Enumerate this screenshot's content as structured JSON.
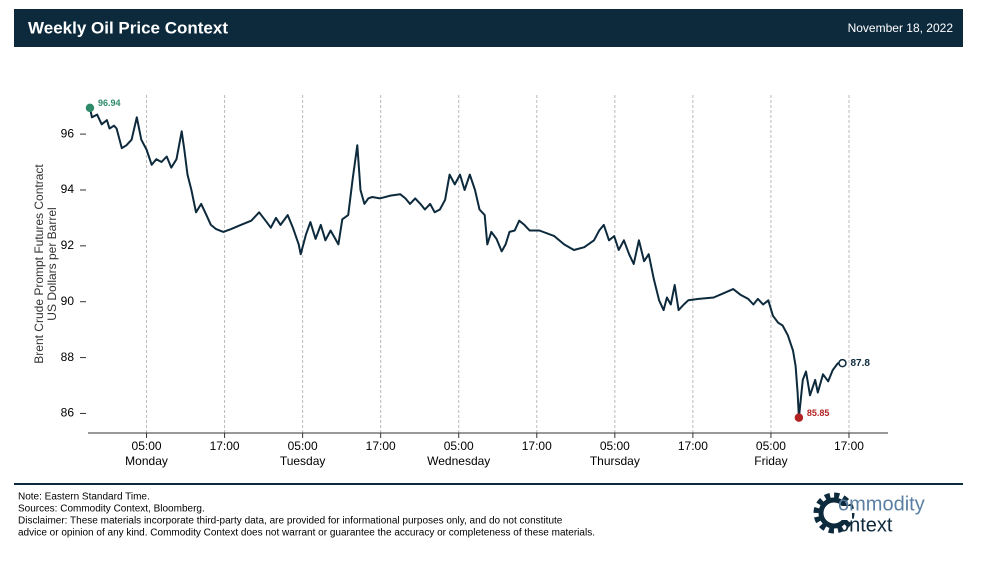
{
  "header": {
    "title": "Weekly Oil Price Context",
    "date": "November 18, 2022"
  },
  "chart_data": {
    "type": "line",
    "ylabel": [
      "Brent Crude Prompt Futures Contract",
      "US Dollars per Barrel"
    ],
    "xlim": [
      -4,
      119
    ],
    "ylim": [
      85.3,
      97.4
    ],
    "yticks": [
      86,
      88,
      90,
      92,
      94,
      96
    ],
    "xticks": [
      {
        "value": 5,
        "label": "05:00"
      },
      {
        "value": 17,
        "label": "17:00"
      },
      {
        "value": 29,
        "label": "05:00"
      },
      {
        "value": 41,
        "label": "17:00"
      },
      {
        "value": 53,
        "label": "05:00"
      },
      {
        "value": 65,
        "label": "17:00"
      },
      {
        "value": 77,
        "label": "05:00"
      },
      {
        "value": 89,
        "label": "17:00"
      },
      {
        "value": 101,
        "label": "05:00"
      },
      {
        "value": 113,
        "label": "17:00"
      }
    ],
    "day_labels": [
      {
        "value": 5,
        "label": "Monday"
      },
      {
        "value": 29,
        "label": "Tuesday"
      },
      {
        "value": 53,
        "label": "Wednesday"
      },
      {
        "value": 77,
        "label": "Thursday"
      },
      {
        "value": 101,
        "label": "Friday"
      }
    ],
    "grid": true,
    "series": [
      {
        "color": "#0d2a3d",
        "x": [
          -3.7,
          -3.4,
          -2.6,
          -1.9,
          -1.1,
          -0.7,
          0.0,
          0.4,
          1.2,
          1.9,
          2.7,
          3.5,
          4.2,
          5.0,
          5.8,
          6.5,
          7.3,
          8.1,
          8.8,
          9.6,
          10.4,
          10.8,
          11.3,
          11.9,
          12.6,
          13.4,
          14.2,
          14.9,
          15.7,
          16.8,
          18.0,
          19.5,
          21.1,
          22.3,
          23.3,
          24.1,
          24.9,
          25.6,
          26.7,
          27.5,
          28.4,
          28.7,
          29.5,
          30.2,
          31.0,
          31.8,
          32.5,
          33.3,
          34.5,
          35.1,
          36.0,
          36.7,
          37.4,
          37.9,
          38.5,
          39.1,
          39.7,
          40.9,
          42.5,
          44.0,
          44.8,
          45.5,
          46.3,
          47.1,
          47.8,
          48.6,
          49.3,
          50.1,
          50.9,
          51.6,
          52.4,
          53.2,
          53.9,
          54.7,
          55.5,
          56.2,
          57.0,
          57.4,
          58.0,
          58.8,
          59.6,
          60.2,
          60.8,
          61.6,
          62.3,
          63.1,
          63.9,
          65.4,
          67.7,
          69.2,
          70.7,
          72.3,
          73.8,
          74.6,
          75.3,
          76.1,
          76.9,
          77.6,
          78.4,
          79.2,
          79.9,
          80.7,
          81.5,
          82.2,
          83.0,
          83.8,
          84.5,
          85.0,
          85.6,
          86.2,
          86.8,
          87.6,
          88.3,
          89.9,
          92.2,
          93.7,
          95.2,
          96.3,
          97.5,
          98.3,
          99.0,
          99.8,
          100.6,
          101.3,
          102.1,
          102.8,
          103.6,
          104.4,
          104.8,
          105.1,
          105.3,
          105.9,
          106.4,
          107.0,
          107.8,
          108.2,
          109.0,
          109.8,
          110.5,
          111.3,
          112.0
        ],
        "values": [
          96.94,
          96.6,
          96.7,
          96.35,
          96.5,
          96.2,
          96.3,
          96.2,
          95.5,
          95.6,
          95.8,
          96.6,
          95.8,
          95.45,
          94.9,
          95.1,
          95.0,
          95.2,
          94.8,
          95.1,
          96.1,
          95.45,
          94.55,
          94.0,
          93.2,
          93.5,
          93.1,
          92.75,
          92.6,
          92.5,
          92.6,
          92.75,
          92.9,
          93.2,
          92.9,
          92.65,
          93.0,
          92.75,
          93.1,
          92.65,
          92.05,
          91.7,
          92.4,
          92.85,
          92.25,
          92.75,
          92.2,
          92.55,
          92.05,
          92.95,
          93.1,
          94.4,
          95.6,
          94.0,
          93.5,
          93.7,
          93.75,
          93.7,
          93.8,
          93.85,
          93.7,
          93.5,
          93.7,
          93.5,
          93.3,
          93.5,
          93.2,
          93.3,
          93.65,
          94.55,
          94.2,
          94.55,
          94.0,
          94.55,
          94.0,
          93.3,
          93.1,
          92.05,
          92.5,
          92.25,
          91.8,
          92.05,
          92.5,
          92.55,
          92.9,
          92.75,
          92.55,
          92.55,
          92.35,
          92.05,
          91.85,
          91.95,
          92.2,
          92.55,
          92.75,
          92.2,
          92.35,
          91.85,
          92.2,
          91.7,
          91.35,
          92.2,
          91.45,
          91.7,
          90.8,
          90.05,
          89.7,
          90.15,
          89.9,
          90.6,
          89.7,
          89.9,
          90.05,
          90.1,
          90.15,
          90.3,
          90.45,
          90.25,
          90.1,
          89.9,
          90.1,
          89.9,
          90.05,
          89.5,
          89.25,
          89.15,
          88.8,
          88.25,
          87.7,
          86.75,
          85.85,
          87.2,
          87.5,
          86.65,
          87.2,
          86.75,
          87.4,
          87.15,
          87.55,
          87.8,
          87.8
        ]
      }
    ],
    "markers": [
      {
        "x": -3.7,
        "value": 96.94,
        "color": "#2e8b6a"
      },
      {
        "x": 105.3,
        "value": 85.85,
        "color": "#b22222"
      },
      {
        "x": 112.0,
        "value": 87.8,
        "color": "#0d2a3d"
      }
    ]
  },
  "footer": {
    "notes": [
      "Note: Eastern Standard Time.",
      "Sources: Commodity Context, Bloomberg.",
      "Disclaimer: These materials incorporate third-party data, are provided for informational purposes only, and do not constitute",
      "advice or opinion of any kind. Commodity Context does not warrant or guarantee the accuracy or completeness of these materials."
    ],
    "logo": [
      "ommodity",
      "ontext"
    ]
  }
}
